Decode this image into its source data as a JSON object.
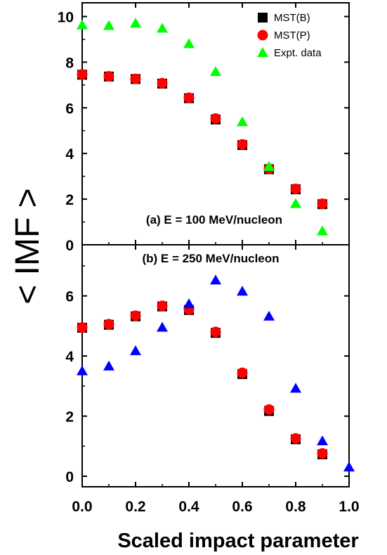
{
  "chart_data": [
    {
      "type": "scatter",
      "panel_label": "(a) E = 100 MeV/nucleon",
      "x": [
        0.0,
        0.1,
        0.2,
        0.3,
        0.4,
        0.5,
        0.6,
        0.7,
        0.8,
        0.9
      ],
      "xlim": [
        0.0,
        1.0
      ],
      "ylim": [
        0,
        10.6
      ],
      "yticks": [
        "0",
        "2",
        "4",
        "6",
        "8",
        "10"
      ],
      "legend": "top-right",
      "series": [
        {
          "name": "MST(B)",
          "marker": "square",
          "color": "#000000",
          "values": [
            7.45,
            7.37,
            7.26,
            7.06,
            6.42,
            5.49,
            4.37,
            3.31,
            2.43,
            1.78
          ]
        },
        {
          "name": "MST(P)",
          "marker": "circle",
          "color": "#ff0000",
          "values": [
            7.47,
            7.38,
            7.27,
            7.08,
            6.44,
            5.53,
            4.4,
            3.33,
            2.45,
            1.8
          ]
        },
        {
          "name": "Expt. data",
          "marker": "triangle",
          "color": "#00ff00",
          "values": [
            9.62,
            9.6,
            9.7,
            9.48,
            8.8,
            7.58,
            5.38,
            3.42,
            1.8,
            0.6
          ]
        }
      ]
    },
    {
      "type": "scatter",
      "panel_label": "(b) E = 250 MeV/nucleon",
      "x": [
        0.0,
        0.1,
        0.2,
        0.3,
        0.4,
        0.5,
        0.6,
        0.7,
        0.8,
        0.9,
        1.0
      ],
      "xlim": [
        0.0,
        1.0
      ],
      "xticks": [
        "0.0",
        "0.2",
        "0.4",
        "0.6",
        "0.8",
        "1.0"
      ],
      "ylim": [
        -0.35,
        7.7
      ],
      "yticks": [
        "0",
        "2",
        "4",
        "6"
      ],
      "series": [
        {
          "name": "MST(B)",
          "marker": "square",
          "color": "#000000",
          "values": [
            4.94,
            5.04,
            5.32,
            5.65,
            5.53,
            4.77,
            3.4,
            2.17,
            1.23,
            0.73,
            null
          ]
        },
        {
          "name": "MST(P)",
          "marker": "circle",
          "color": "#ff0000",
          "values": [
            4.95,
            5.06,
            5.34,
            5.67,
            5.55,
            4.8,
            3.44,
            2.22,
            1.26,
            0.76,
            null
          ]
        },
        {
          "name": "Expt. data",
          "marker": "triangle",
          "color": "#0000ff",
          "values": [
            3.5,
            3.66,
            4.17,
            4.95,
            5.73,
            6.52,
            6.15,
            5.32,
            2.92,
            1.17,
            0.3
          ]
        }
      ]
    }
  ],
  "xlabel": "Scaled impact parameter",
  "ylabel": "< IMF >"
}
